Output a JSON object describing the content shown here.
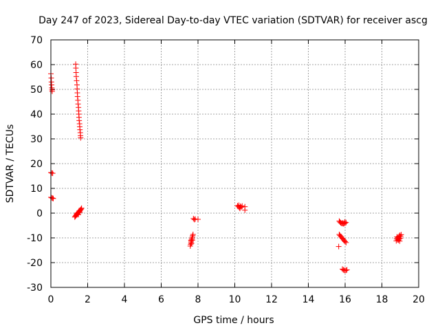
{
  "chart_data": {
    "type": "scatter",
    "title": "Day 247 of 2023, Sidereal Day-to-day VTEC variation (SDTVAR) for receiver ascg",
    "xlabel": "GPS time / hours",
    "ylabel": "SDTVAR / TECUs",
    "xlim": [
      0,
      20
    ],
    "ylim": [
      -30,
      70
    ],
    "xticks": [
      0,
      2,
      4,
      6,
      8,
      10,
      12,
      14,
      16,
      18,
      20
    ],
    "yticks": [
      -30,
      -20,
      -10,
      0,
      10,
      20,
      30,
      40,
      50,
      60,
      70
    ],
    "xtick_labels": [
      "0",
      "2",
      "4",
      "6",
      "8",
      "10",
      "12",
      "14",
      "16",
      "18",
      "20"
    ],
    "ytick_labels": [
      "-30",
      "-20",
      "-10",
      "0",
      "10",
      "20",
      "30",
      "40",
      "50",
      "60",
      "70"
    ],
    "grid": true,
    "marker": "+",
    "marker_color": "#ff0000",
    "series": [
      {
        "name": "sdtvar",
        "points": [
          [
            0.0,
            56.3
          ],
          [
            0.02,
            54.6
          ],
          [
            0.03,
            53.0
          ],
          [
            0.04,
            51.8
          ],
          [
            0.05,
            50.6
          ],
          [
            0.06,
            49.8
          ],
          [
            0.07,
            49.2
          ],
          [
            0.0,
            16.4
          ],
          [
            0.05,
            16.2
          ],
          [
            0.1,
            16.1
          ],
          [
            0.0,
            6.4
          ],
          [
            0.05,
            6.2
          ],
          [
            0.1,
            6.0
          ],
          [
            0.13,
            5.9
          ],
          [
            1.35,
            60.2
          ],
          [
            1.36,
            58.6
          ],
          [
            1.37,
            56.8
          ],
          [
            1.38,
            55.2
          ],
          [
            1.4,
            53.5
          ],
          [
            1.42,
            51.8
          ],
          [
            1.43,
            50.2
          ],
          [
            1.44,
            48.6
          ],
          [
            1.45,
            47.1
          ],
          [
            1.47,
            45.6
          ],
          [
            1.48,
            44.1
          ],
          [
            1.5,
            42.7
          ],
          [
            1.51,
            41.3
          ],
          [
            1.52,
            40.0
          ],
          [
            1.53,
            38.7
          ],
          [
            1.54,
            37.4
          ],
          [
            1.56,
            36.1
          ],
          [
            1.57,
            34.9
          ],
          [
            1.58,
            33.7
          ],
          [
            1.6,
            32.5
          ],
          [
            1.61,
            31.3
          ],
          [
            1.62,
            30.4
          ],
          [
            1.3,
            -1.6
          ],
          [
            1.33,
            -1.3
          ],
          [
            1.36,
            -1.0
          ],
          [
            1.38,
            -0.8
          ],
          [
            1.4,
            -0.5
          ],
          [
            1.43,
            -0.3
          ],
          [
            1.45,
            -0.1
          ],
          [
            1.48,
            0.1
          ],
          [
            1.5,
            0.3
          ],
          [
            1.52,
            0.5
          ],
          [
            1.55,
            0.7
          ],
          [
            1.57,
            0.9
          ],
          [
            1.6,
            1.2
          ],
          [
            1.62,
            1.4
          ],
          [
            1.65,
            1.7
          ],
          [
            1.67,
            2.0
          ],
          [
            1.42,
            0.0
          ],
          [
            1.5,
            -0.6
          ],
          [
            1.58,
            0.3
          ],
          [
            7.58,
            -13.3
          ],
          [
            7.6,
            -12.6
          ],
          [
            7.62,
            -12.0
          ],
          [
            7.63,
            -11.4
          ],
          [
            7.65,
            -10.8
          ],
          [
            7.67,
            -10.3
          ],
          [
            7.69,
            -9.7
          ],
          [
            7.71,
            -9.1
          ],
          [
            7.73,
            -8.6
          ],
          [
            7.65,
            -12.2
          ],
          [
            7.7,
            -10.9
          ],
          [
            7.62,
            -11.0
          ],
          [
            7.75,
            -2.2
          ],
          [
            7.8,
            -2.6
          ],
          [
            7.85,
            -2.4
          ],
          [
            8.0,
            -2.5
          ],
          [
            10.15,
            3.0
          ],
          [
            10.2,
            2.6
          ],
          [
            10.25,
            2.2
          ],
          [
            10.3,
            2.8
          ],
          [
            10.35,
            2.4
          ],
          [
            10.4,
            2.9
          ],
          [
            10.22,
            3.2
          ],
          [
            10.28,
            1.9
          ],
          [
            10.55,
            2.6
          ],
          [
            10.55,
            1.2
          ],
          [
            15.65,
            -13.5
          ],
          [
            15.68,
            -3.2
          ],
          [
            15.72,
            -3.6
          ],
          [
            15.76,
            -3.9
          ],
          [
            15.8,
            -4.1
          ],
          [
            15.85,
            -4.2
          ],
          [
            15.9,
            -4.3
          ],
          [
            15.95,
            -4.2
          ],
          [
            16.0,
            -4.0
          ],
          [
            16.05,
            -3.8
          ],
          [
            15.88,
            -3.9
          ],
          [
            15.98,
            -3.6
          ],
          [
            15.68,
            -8.6
          ],
          [
            15.72,
            -9.0
          ],
          [
            15.76,
            -9.4
          ],
          [
            15.8,
            -9.7
          ],
          [
            15.84,
            -10.1
          ],
          [
            15.88,
            -10.4
          ],
          [
            15.92,
            -10.8
          ],
          [
            15.96,
            -11.2
          ],
          [
            16.0,
            -11.5
          ],
          [
            16.05,
            -11.9
          ],
          [
            15.85,
            -22.6
          ],
          [
            15.9,
            -22.9
          ],
          [
            15.95,
            -23.1
          ],
          [
            16.0,
            -23.2
          ],
          [
            16.05,
            -23.1
          ],
          [
            16.1,
            -22.9
          ],
          [
            18.78,
            -11.2
          ],
          [
            18.8,
            -10.3
          ],
          [
            18.82,
            -9.6
          ],
          [
            18.85,
            -10.8
          ],
          [
            18.88,
            -9.9
          ],
          [
            18.9,
            -11.0
          ],
          [
            18.93,
            -9.3
          ],
          [
            18.95,
            -10.5
          ],
          [
            18.98,
            -8.9
          ],
          [
            19.0,
            -10.1
          ],
          [
            19.02,
            -9.4
          ],
          [
            19.05,
            -8.7
          ],
          [
            18.88,
            -10.4
          ],
          [
            18.97,
            -11.3
          ]
        ]
      }
    ]
  }
}
